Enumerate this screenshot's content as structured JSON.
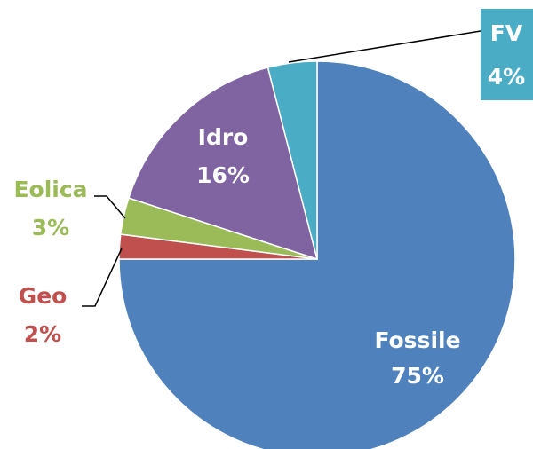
{
  "chart_data": {
    "type": "pie",
    "title": "",
    "start_angle_deg": 0,
    "direction": "clockwise",
    "slices": [
      {
        "label": "Fossile",
        "value": 75,
        "value_label": "75%",
        "color": "#4F81BD",
        "label_color": "#FFFFFF"
      },
      {
        "label": "Geo",
        "value": 2,
        "value_label": "2%",
        "color": "#C0504D",
        "label_color": "#C0504D"
      },
      {
        "label": "Eolica",
        "value": 3,
        "value_label": "3%",
        "color": "#9BBB59",
        "label_color": "#9BBB59"
      },
      {
        "label": "Idro",
        "value": 16,
        "value_label": "16%",
        "color": "#8064A2",
        "label_color": "#FFFFFF"
      },
      {
        "label": "FV",
        "value": 4,
        "value_label": "4%",
        "color": "#4BACC6",
        "label_color": "#FFFFFF"
      }
    ]
  }
}
